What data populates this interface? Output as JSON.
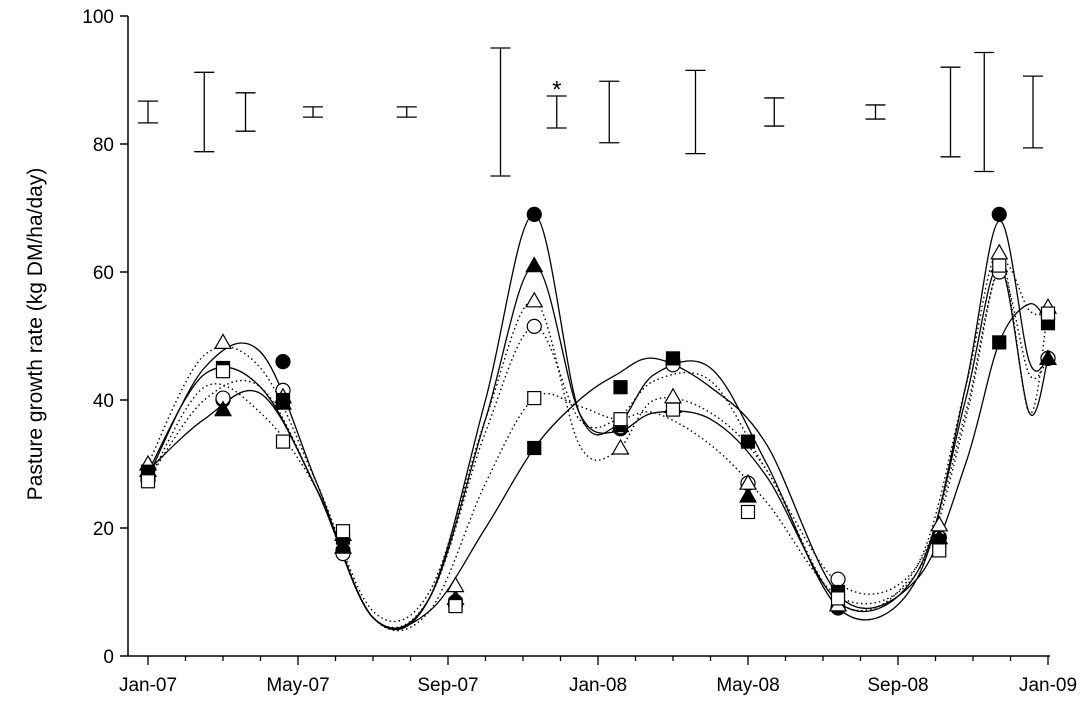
{
  "chart_data": {
    "type": "line",
    "title": "",
    "xlabel": "",
    "ylabel": "Pasture growth rate (kg DM/ha/day)",
    "ylim": [
      0,
      100
    ],
    "y_ticks": [
      "0",
      "20",
      "40",
      "60",
      "80",
      "100"
    ],
    "x_tick_labels": [
      "Jan-07",
      "May-07",
      "Sep-07",
      "Jan-08",
      "May-08",
      "Sep-08",
      "Jan-09"
    ],
    "x_month_range": [
      0,
      24
    ],
    "grid": false,
    "legend": "none",
    "x": [
      0,
      2,
      3.6,
      5.2,
      8.2,
      10.3,
      12.6,
      14,
      16,
      18.4,
      21.1,
      22.7,
      24
    ],
    "series": [
      {
        "marker": "filled-circle",
        "line": "solid",
        "values": [
          28,
          40,
          46,
          16.5,
          8.5,
          69,
          35.5,
          46,
          27,
          7.5,
          18.5,
          69,
          46.5
        ]
      },
      {
        "marker": "open-circle",
        "line": "dotted",
        "values": [
          27.5,
          40.3,
          41.5,
          16,
          8,
          51.5,
          35.8,
          45.5,
          27,
          12,
          18.5,
          60,
          46.5
        ]
      },
      {
        "marker": "filled-triangle",
        "line": "solid",
        "values": [
          29,
          38.5,
          39.5,
          17,
          9,
          61,
          36,
          39,
          25,
          8,
          18.5,
          61,
          46.5
        ]
      },
      {
        "marker": "open-triangle",
        "line": "dotted",
        "values": [
          30,
          49,
          40.5,
          19,
          11,
          55.5,
          32.5,
          40.5,
          27,
          8,
          20.5,
          63,
          54.5
        ]
      },
      {
        "marker": "filled-square",
        "line": "solid",
        "values": [
          28.8,
          45,
          40,
          18.5,
          8,
          32.5,
          42,
          46.5,
          33.5,
          10,
          18,
          49,
          52
        ]
      },
      {
        "marker": "open-square",
        "line": "dotted",
        "values": [
          27.3,
          44.5,
          33.5,
          19.5,
          7.8,
          40.3,
          37,
          38.5,
          22.5,
          9,
          16.5,
          61,
          53.5
        ]
      }
    ],
    "fitted_curve_months": {
      "filled-circle": [
        0,
        1.5,
        3,
        4.5,
        6,
        7.5,
        9,
        10.3,
        11.5,
        12.5,
        13.5,
        15,
        16.5,
        18.5,
        20.5,
        21.8,
        22.7,
        23.5,
        24
      ],
      "open-circle": [
        0,
        1.5,
        3,
        4.5,
        6,
        7.5,
        9,
        10.3,
        11.5,
        12.5,
        13.5,
        15,
        16.5,
        18.5,
        20.5,
        21.8,
        22.7,
        23.5,
        24
      ],
      "filled-triangle": [
        0,
        1.5,
        3,
        4.5,
        6,
        7.5,
        9,
        10.3,
        11.5,
        12.5,
        13.5,
        15,
        16.5,
        18.5,
        20.5,
        21.8,
        22.7,
        23.5,
        24
      ],
      "open-triangle": [
        0,
        1.5,
        3,
        4.5,
        6,
        7.5,
        9,
        10.3,
        11.5,
        12.5,
        13.5,
        15,
        16.5,
        18.5,
        20.5,
        21.8,
        22.7,
        23.5,
        24
      ],
      "filled-square": [
        0,
        1.5,
        3,
        4.5,
        6,
        7.5,
        9,
        10.3,
        11.5,
        12.5,
        13.5,
        15,
        16.5,
        18.5,
        20.5,
        21.8,
        22.7,
        23.5,
        24
      ],
      "open-square": [
        0,
        1.5,
        3,
        4.5,
        6,
        7.5,
        9,
        10.3,
        11.5,
        12.5,
        13.5,
        15,
        16.5,
        18.5,
        20.5,
        21.8,
        22.7,
        23.5,
        24
      ]
    },
    "fitted_curves": {
      "filled-circle": [
        28,
        45,
        47.5,
        27,
        6,
        9,
        40,
        69,
        38,
        36,
        44,
        45,
        30,
        7,
        12,
        42,
        68,
        46,
        46.5
      ],
      "open-circle": [
        27.5,
        40,
        42,
        26,
        6,
        9,
        35,
        51.5,
        37,
        37,
        43,
        43,
        29,
        11,
        14,
        38,
        60,
        44,
        46.5
      ],
      "filled-triangle": [
        29,
        37,
        41,
        26,
        6,
        9,
        37,
        61,
        38,
        35,
        38,
        37,
        28,
        8,
        13,
        40,
        61,
        38,
        46.5
      ],
      "open-triangle": [
        30,
        47,
        45,
        27,
        7,
        10,
        37,
        55.5,
        33,
        32,
        40,
        38,
        29,
        8,
        14,
        42,
        63,
        38,
        54.5
      ],
      "filled-square": [
        28.8,
        44,
        42,
        26,
        6,
        7,
        20,
        32.5,
        40,
        44,
        46.5,
        42,
        33,
        9,
        12,
        30,
        49,
        55,
        52
      ],
      "open-square": [
        27.3,
        42,
        38,
        26,
        6,
        7,
        27,
        40.3,
        39,
        37,
        38,
        33,
        24,
        9,
        13,
        37,
        61,
        54,
        53.5
      ]
    },
    "error_bars": {
      "x": [
        0,
        2,
        3.6,
        5.2,
        8.2,
        10.3,
        12.6,
        14,
        16,
        18.4,
        21.1,
        22.7,
        24
      ],
      "center": 85,
      "half_height": [
        1.7,
        6.2,
        3,
        0.8,
        0.8,
        10,
        2.5,
        4.8,
        6.5,
        2.2,
        1.1,
        7,
        9.3,
        5.6
      ],
      "half_height_by_x": [
        1.7,
        6.2,
        3,
        0.8,
        0.8,
        10,
        2.5,
        4.8,
        6.5,
        2.2,
        1.1,
        7,
        5.6
      ],
      "extra_bar": {
        "x": 22.0,
        "half_height": 9.3
      },
      "x_all": [
        0,
        1.5,
        2.6,
        4.4,
        6.9,
        9.4,
        10.9,
        12.3,
        14.6,
        16.7,
        19.4,
        21.4,
        22.3,
        23.6
      ],
      "half_all": [
        1.7,
        6.2,
        3,
        0.8,
        0.8,
        10,
        2.5,
        4.8,
        6.5,
        2.2,
        1.1,
        7,
        9.3,
        5.6
      ]
    },
    "annotations": [
      {
        "text": "*",
        "x": 10.9,
        "y": 88.5
      }
    ]
  }
}
